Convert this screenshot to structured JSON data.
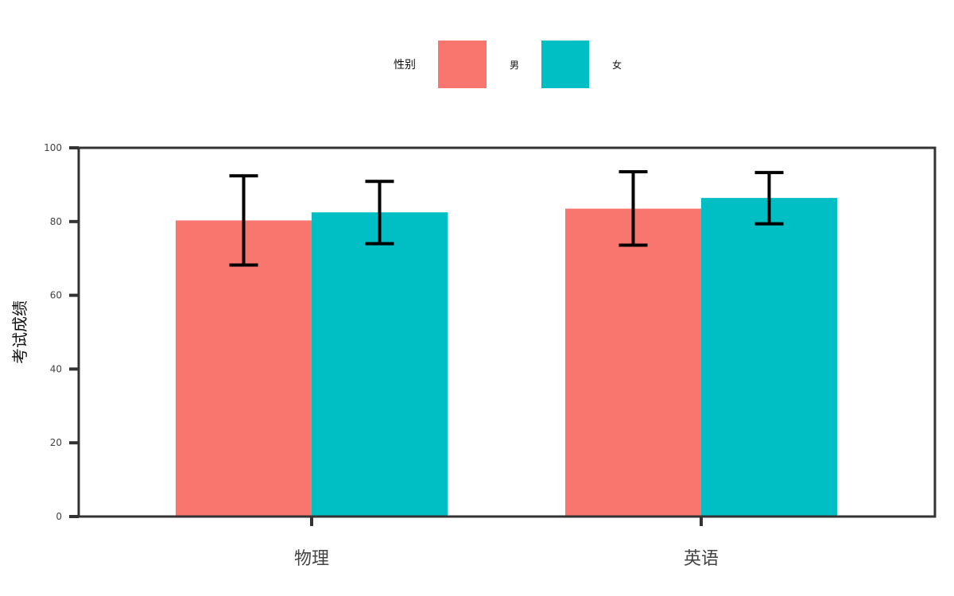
{
  "chart_data": {
    "type": "bar",
    "categories": [
      "物理",
      "英语"
    ],
    "series": [
      {
        "name": "男",
        "values": [
          80.3,
          83.5
        ],
        "err_low": [
          68.2,
          73.6
        ],
        "err_high": [
          92.4,
          93.5
        ],
        "color": "#F8766D"
      },
      {
        "name": "女",
        "values": [
          82.5,
          86.4
        ],
        "err_low": [
          74.0,
          79.4
        ],
        "err_high": [
          90.9,
          93.3
        ],
        "color": "#00BFC4"
      }
    ],
    "title": "",
    "xlabel": "",
    "ylabel": "考试成绩",
    "ylim": [
      0,
      100
    ],
    "yticks": [
      0,
      20,
      40,
      60,
      80,
      100
    ],
    "grid": false,
    "legend": {
      "title": "性别",
      "position": "top-center"
    }
  }
}
